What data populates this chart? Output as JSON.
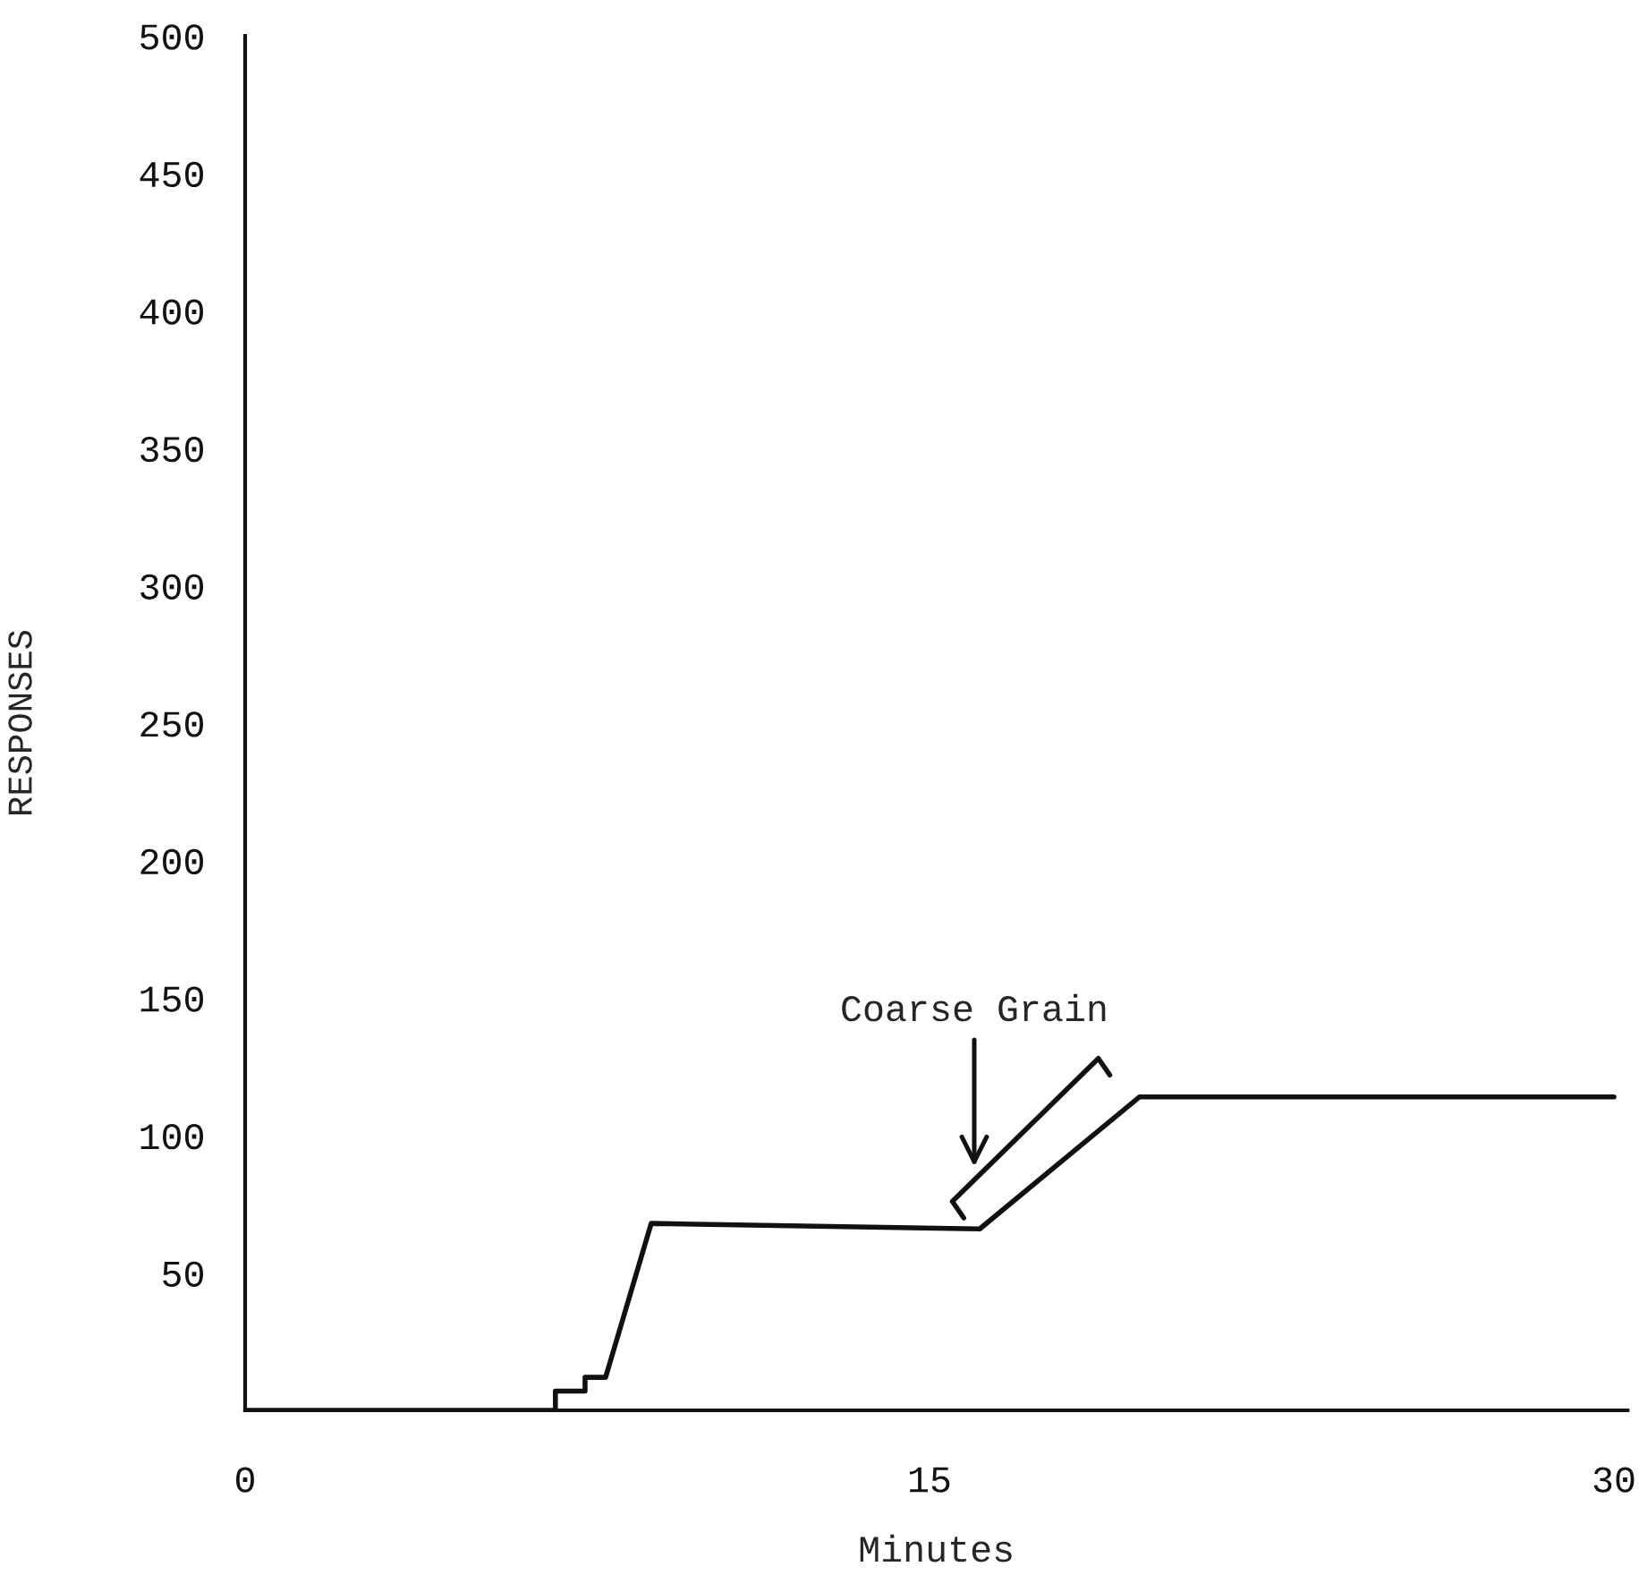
{
  "chart_data": {
    "type": "line",
    "xlabel": "Minutes",
    "ylabel": "RESPONSES",
    "x": [
      0,
      6.8,
      6.8,
      7.45,
      7.45,
      7.9,
      8.9,
      16.1,
      19.6,
      30
    ],
    "series": [
      {
        "color": "#111111",
        "values": [
          0,
          0,
          7,
          7,
          12,
          12,
          68,
          66,
          114,
          114
        ]
      }
    ],
    "xlim": [
      0,
      30.3
    ],
    "xticks": [
      0,
      15,
      30
    ],
    "ylim": [
      0,
      500
    ],
    "yticks": [
      50,
      100,
      150,
      200,
      250,
      300,
      350,
      400,
      450,
      500
    ],
    "annotations": [
      "Coarse Grain"
    ],
    "grid": false,
    "legend": false,
    "marker": "none",
    "line_style": "solid"
  }
}
